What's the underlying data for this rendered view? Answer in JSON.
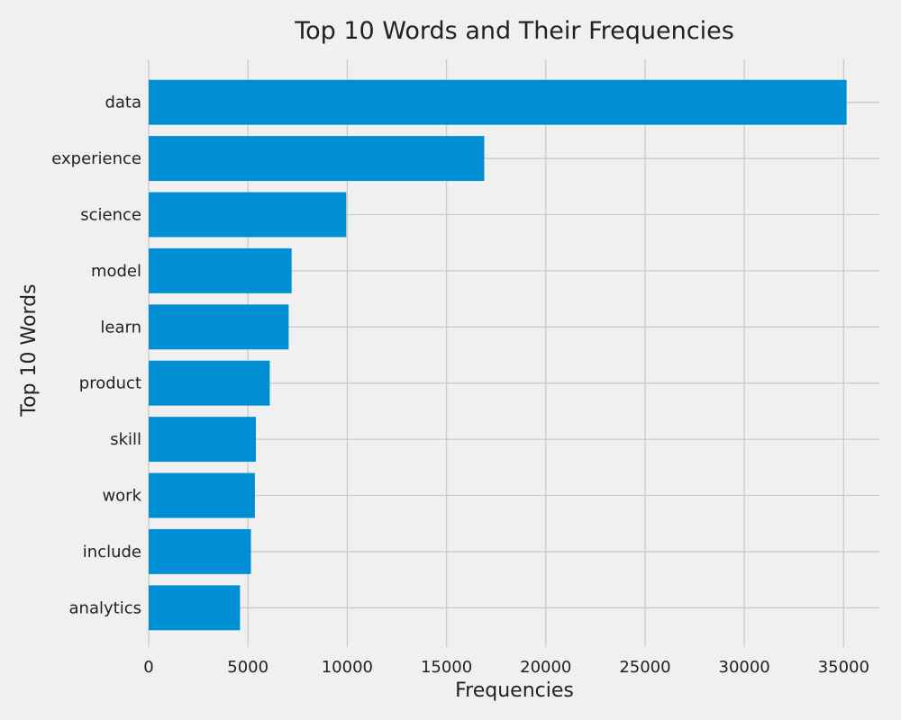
{
  "chart_data": {
    "type": "bar",
    "orientation": "horizontal",
    "title": "Top 10 Words and Their Frequencies",
    "xlabel": "Frequencies",
    "ylabel": "Top 10 Words",
    "categories": [
      "data",
      "experience",
      "science",
      "model",
      "learn",
      "product",
      "skill",
      "work",
      "include",
      "analytics"
    ],
    "values": [
      35150,
      16900,
      9950,
      7200,
      7050,
      6100,
      5400,
      5350,
      5150,
      4600
    ],
    "xlim": [
      0,
      36800
    ],
    "xticks": [
      0,
      5000,
      10000,
      15000,
      20000,
      25000,
      30000,
      35000
    ],
    "grid": true,
    "bar_color": "#008fd5",
    "background_color": "#f0f0f0",
    "grid_color": "#cbcbcb"
  }
}
